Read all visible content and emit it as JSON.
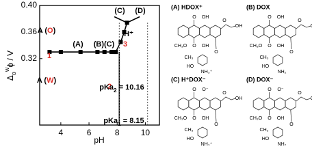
{
  "chart_data": {
    "type": "line",
    "x_label": "pH",
    "y_label": [
      {
        "text": "Δ"
      },
      {
        "text": "o",
        "sub": true
      },
      {
        "text": "w",
        "sup": true
      },
      {
        "text": "ϕ / V"
      }
    ],
    "xlim": [
      2.5,
      11
    ],
    "xticks": [
      4,
      6,
      8,
      10
    ],
    "ylim": [
      0.22,
      0.4
    ],
    "yticks": [
      0.32,
      0.36,
      {
        "value": 0.4,
        "label": "0.40"
      }
    ],
    "series": [
      {
        "x": [
          3.2,
          4.0,
          5.4,
          6.6,
          7.1,
          7.6,
          7.9
        ],
        "values": [
          0.33,
          0.33,
          0.33,
          0.33,
          0.33,
          0.33,
          0.33
        ],
        "color": "#000000",
        "markers": true
      },
      {
        "x": [
          8.15,
          8.15
        ],
        "values": [
          0.22,
          0.33
        ],
        "color": "#000000",
        "markers": false
      },
      {
        "x": [
          7.9,
          8.25,
          8.5,
          8.7
        ],
        "values": [
          0.33,
          0.345,
          0.36,
          0.374
        ],
        "color": "#000000",
        "markers": true
      },
      {
        "x": [
          7.8,
          8.7,
          9.6
        ],
        "values": [
          0.383,
          0.374,
          0.383
        ],
        "color": "#000000",
        "markers": false
      },
      {
        "x": [
          8.15,
          8.15
        ],
        "values": [
          0.22,
          0.374
        ],
        "color": "#555555",
        "markers": false,
        "dash": true
      },
      {
        "x": [
          10.16,
          10.16
        ],
        "values": [
          0.22,
          0.374
        ],
        "color": "#555555",
        "markers": false,
        "dash": true
      }
    ],
    "annotations": [
      [
        {
          "text": "A ("
        },
        {
          "text": "O",
          "color": "#e0302a"
        },
        {
          "text": ")"
        }
      ],
      [
        {
          "text": "A ("
        },
        {
          "text": "W",
          "color": "#e0302a"
        },
        {
          "text": ")"
        }
      ],
      [
        {
          "text": "1",
          "color": "#e0302a"
        }
      ],
      [
        {
          "text": "2",
          "color": "#e0302a"
        }
      ],
      [
        {
          "text": "3",
          "color": "#e0302a"
        }
      ],
      [
        {
          "text": "(A)"
        }
      ],
      [
        {
          "text": "(B)(C)"
        }
      ],
      [
        {
          "text": "(C)"
        }
      ],
      [
        {
          "text": "(D)"
        }
      ],
      [
        {
          "text": "H⁺"
        }
      ],
      [
        {
          "text": "pKa"
        },
        {
          "text": "2",
          "sub": true
        },
        {
          "text": " = 10.16"
        }
      ],
      [
        {
          "text": "pKa"
        },
        {
          "text": "1",
          "sub": true
        },
        {
          "text": " = 8.15"
        }
      ]
    ]
  },
  "molecules": [
    {
      "title": "(A) HDOX⁺",
      "labels": [
        "O",
        "OH",
        "O",
        "OH",
        "CH₃O",
        "O",
        "OH",
        "O",
        "CH₃",
        "HO",
        "NH₃⁺"
      ]
    },
    {
      "title": "(B) DOX",
      "labels": [
        "O",
        "OH",
        "O",
        "OH",
        "CH₃O",
        "O",
        "OH",
        "O",
        "CH₃",
        "HO",
        "NH₂"
      ]
    },
    {
      "title": "(C) H⁺DOX⁻",
      "labels": [
        "O",
        "O⁻",
        "O",
        "OH",
        "CH₃O",
        "O",
        "OH",
        "O",
        "CH₃",
        "HO",
        "NH₃⁺"
      ]
    },
    {
      "title": "(D) DOX⁻",
      "labels": [
        "O",
        "O⁻",
        "O",
        "OH",
        "CH₃O",
        "O",
        "OH",
        "O",
        "CH₃",
        "HO",
        "NH₂"
      ]
    }
  ]
}
